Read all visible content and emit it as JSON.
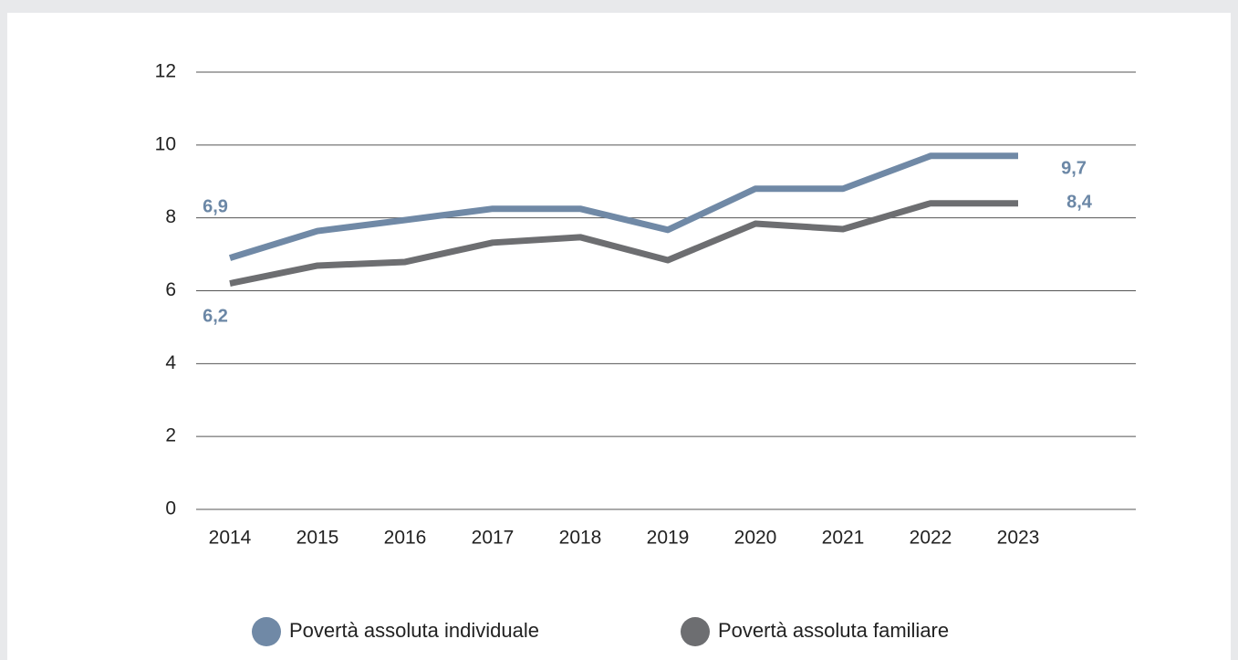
{
  "chart_data": {
    "type": "line",
    "categories": [
      "2014",
      "2015",
      "2016",
      "2017",
      "2018",
      "2019",
      "2020",
      "2021",
      "2022",
      "2023"
    ],
    "series": [
      {
        "name": "Povertà assoluta individuale",
        "color": "#7089a6",
        "values": [
          6.9,
          7.64,
          7.94,
          8.25,
          8.25,
          7.67,
          8.8,
          8.8,
          9.7,
          9.7
        ],
        "value_labels": [
          "6,9",
          null,
          null,
          null,
          null,
          null,
          null,
          null,
          null,
          "9,7"
        ]
      },
      {
        "name": "Povertà assoluta familiare",
        "color": "#6d6e71",
        "values": [
          6.2,
          6.69,
          6.79,
          7.32,
          7.47,
          6.84,
          7.84,
          7.69,
          8.4,
          8.4
        ],
        "value_labels": [
          "6,2",
          null,
          null,
          null,
          null,
          null,
          null,
          null,
          null,
          "8,4"
        ]
      }
    ],
    "ylim": [
      0,
      12
    ],
    "yticks": [
      0,
      2,
      4,
      6,
      8,
      10,
      12
    ],
    "grid": true,
    "legend": "bottom"
  }
}
